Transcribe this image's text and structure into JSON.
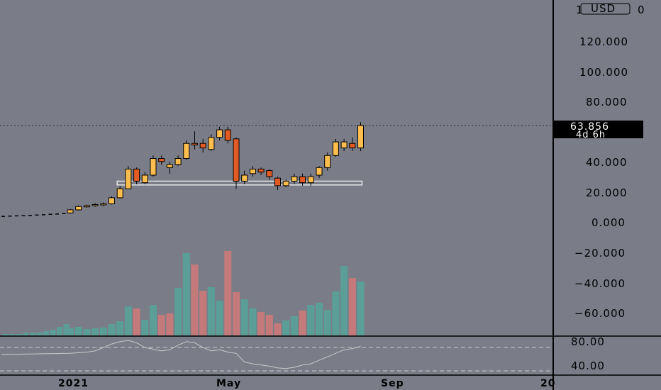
{
  "currency_button": "USD",
  "last_price": {
    "value": "63.856",
    "countdown": "4d 6h"
  },
  "colors": {
    "background": "#7a7d88",
    "up_candle": "#ffbe4d",
    "down_candle": "#e35a22",
    "volume_up": "#5a9e97",
    "volume_down": "#c47a7a",
    "axis": "#000000"
  },
  "chart_data": [
    {
      "type": "candlestick",
      "title": "",
      "price_axis_labels": [
        "1",
        "120.000",
        "100.000",
        "80.000",
        "40.000",
        "20.000",
        "0.000",
        "−20.000",
        "−40.000",
        "−60.000",
        "80.00",
        "40.00"
      ],
      "price_axis_visible_top": "1",
      "time_axis_labels": [
        "2021",
        "May",
        "Sep",
        "20"
      ],
      "ylim": [
        -80,
        140
      ],
      "pre_history_dots": [
        {
          "x": 0,
          "y": 4.0
        },
        {
          "x": 1,
          "y": 4.2
        },
        {
          "x": 2,
          "y": 4.4
        },
        {
          "x": 3,
          "y": 4.5
        },
        {
          "x": 4,
          "y": 4.7
        },
        {
          "x": 5,
          "y": 4.9
        },
        {
          "x": 6,
          "y": 5.1
        },
        {
          "x": 7,
          "y": 5.4
        },
        {
          "x": 8,
          "y": 5.6
        },
        {
          "x": 9,
          "y": 5.9
        }
      ],
      "candles": [
        {
          "o": 6.0,
          "h": 8.5,
          "l": 5.5,
          "c": 8.0
        },
        {
          "o": 8.0,
          "h": 11.0,
          "l": 7.5,
          "c": 10.2
        },
        {
          "o": 10.0,
          "h": 11.5,
          "l": 9.5,
          "c": 10.8
        },
        {
          "o": 10.8,
          "h": 12.5,
          "l": 10.0,
          "c": 11.5
        },
        {
          "o": 11.5,
          "h": 13.0,
          "l": 10.5,
          "c": 12.0
        },
        {
          "o": 12.0,
          "h": 17.0,
          "l": 11.5,
          "c": 16.0
        },
        {
          "o": 16.0,
          "h": 24.0,
          "l": 15.5,
          "c": 22.0
        },
        {
          "o": 22.0,
          "h": 37.0,
          "l": 22.0,
          "c": 35.0
        },
        {
          "o": 35.0,
          "h": 36.0,
          "l": 25.0,
          "c": 27.0
        },
        {
          "o": 26.0,
          "h": 33.0,
          "l": 25.0,
          "c": 31.0
        },
        {
          "o": 31.0,
          "h": 44.0,
          "l": 30.0,
          "c": 42.0
        },
        {
          "o": 42.0,
          "h": 44.0,
          "l": 38.0,
          "c": 40.0
        },
        {
          "o": 36.0,
          "h": 40.0,
          "l": 32.0,
          "c": 38.0
        },
        {
          "o": 38.0,
          "h": 44.0,
          "l": 37.0,
          "c": 42.0
        },
        {
          "o": 42.0,
          "h": 54.0,
          "l": 41.0,
          "c": 52.0
        },
        {
          "o": 52.0,
          "h": 60.0,
          "l": 48.0,
          "c": 51.0
        },
        {
          "o": 52.0,
          "h": 55.0,
          "l": 46.0,
          "c": 49.0
        },
        {
          "o": 48.0,
          "h": 58.0,
          "l": 47.0,
          "c": 56.0
        },
        {
          "o": 56.0,
          "h": 63.0,
          "l": 54.0,
          "c": 61.0
        },
        {
          "o": 61.0,
          "h": 63.0,
          "l": 52.0,
          "c": 54.0
        },
        {
          "o": 55.0,
          "h": 56.0,
          "l": 22.0,
          "c": 27.0
        },
        {
          "o": 27.0,
          "h": 34.0,
          "l": 25.0,
          "c": 31.0
        },
        {
          "o": 32.0,
          "h": 37.0,
          "l": 30.0,
          "c": 35.0
        },
        {
          "o": 35.0,
          "h": 36.0,
          "l": 31.0,
          "c": 33.0
        },
        {
          "o": 34.0,
          "h": 35.0,
          "l": 28.0,
          "c": 30.0
        },
        {
          "o": 29.0,
          "h": 30.0,
          "l": 21.0,
          "c": 24.0
        },
        {
          "o": 24.0,
          "h": 28.0,
          "l": 23.0,
          "c": 27.0
        },
        {
          "o": 27.0,
          "h": 32.0,
          "l": 25.0,
          "c": 30.0
        },
        {
          "o": 30.0,
          "h": 32.0,
          "l": 24.0,
          "c": 26.0
        },
        {
          "o": 26.0,
          "h": 32.0,
          "l": 24.0,
          "c": 30.0
        },
        {
          "o": 31.0,
          "h": 37.0,
          "l": 29.0,
          "c": 36.0
        },
        {
          "o": 36.0,
          "h": 46.0,
          "l": 34.0,
          "c": 44.0
        },
        {
          "o": 44.0,
          "h": 55.0,
          "l": 43.0,
          "c": 53.0
        },
        {
          "o": 49.0,
          "h": 55.0,
          "l": 47.0,
          "c": 53.0
        },
        {
          "o": 52.0,
          "h": 56.0,
          "l": 47.0,
          "c": 49.0
        },
        {
          "o": 49.0,
          "h": 66.0,
          "l": 47.0,
          "c": 63.856
        }
      ],
      "support_zone": {
        "from_candle": 6,
        "to_candle": 35,
        "low": 24.5,
        "high": 27.0
      },
      "volume": {
        "series_colors": [
          "up",
          "up",
          "up",
          "up",
          "up",
          "up",
          "up",
          "up",
          "down",
          "up",
          "up",
          "down",
          "down",
          "up",
          "up",
          "down",
          "down",
          "up",
          "up",
          "down",
          "down",
          "up",
          "up",
          "down",
          "down",
          "down",
          "up",
          "up",
          "down",
          "up",
          "up",
          "up",
          "up",
          "up",
          "down",
          "up"
        ],
        "values": [
          10,
          12,
          9,
          10,
          11,
          16,
          20,
          41,
          38,
          22,
          43,
          29,
          31,
          67,
          116,
          100,
          63,
          68,
          49,
          119,
          61,
          51,
          38,
          33,
          29,
          17,
          21,
          27,
          35,
          43,
          46,
          36,
          62,
          98,
          81,
          76
        ],
        "early_values": [
          1,
          1,
          1,
          2,
          2,
          2,
          3,
          4,
          6,
          8
        ]
      },
      "oscillator": {
        "levels": [
          80,
          40
        ],
        "values": [
          70,
          71,
          72,
          74,
          80,
          86,
          90,
          92,
          88,
          80,
          77,
          74,
          76,
          84,
          90,
          88,
          80,
          74,
          76,
          72,
          70,
          55,
          52,
          50,
          48,
          45,
          44,
          46,
          50,
          52,
          58,
          64,
          70,
          76,
          78,
          82
        ]
      }
    }
  ]
}
